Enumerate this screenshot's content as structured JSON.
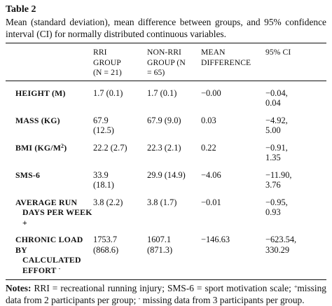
{
  "table_label": "Table 2",
  "caption": "Mean (standard deviation), mean difference between groups, and 95% confidence interval (CI) for normally distributed continuous variables.",
  "header": {
    "rri_line1": "RRI",
    "rri_line2": "GROUP",
    "rri_line3": "(N = 21)",
    "non_line1": "NON-RRI",
    "non_line2": "GROUP (N",
    "non_line3": "= 65)",
    "md_line1": "MEAN",
    "md_line2": "DIFFERENCE",
    "ci": "95% CI"
  },
  "rows": [
    {
      "label": "HEIGHT (M)",
      "rri1": "1.7 (0.1)",
      "rri2": "",
      "non1": "1.7 (0.1)",
      "non2": "",
      "md": "−0.00",
      "ci1": "−0.04,",
      "ci2": "0.04"
    },
    {
      "label": "MASS (KG)",
      "rri1": "67.9",
      "rri2": "(12.5)",
      "non1": "67.9 (9.0)",
      "non2": "",
      "md": "0.03",
      "ci1": "−4.92,",
      "ci2": "5.00"
    },
    {
      "label": "BMI (KG/M",
      "label_sup": "2",
      "label_end": ")",
      "rri1": "22.2 (2.7)",
      "rri2": "",
      "non1": "22.3 (2.1)",
      "non2": "",
      "md": "0.22",
      "ci1": "−0.91,",
      "ci2": "1.35"
    },
    {
      "label": "SMS-6",
      "rri1": "33.9",
      "rri2": "(18.1)",
      "non1": "29.9 (14.9)",
      "non2": "",
      "md": "−4.06",
      "ci1": "−11.90,",
      "ci2": "3.76"
    },
    {
      "label": "AVERAGE RUN",
      "label_line2": "DAYS PER WEEK",
      "label_line3": "+",
      "rri1": "3.8 (2.2)",
      "rri2": "",
      "non1": "3.8 (1.7)",
      "non2": "",
      "md": "−0.01",
      "ci1": "−0.95,",
      "ci2": "0.93"
    },
    {
      "label": "CHRONIC LOAD BY",
      "label_line2": "CALCULATED",
      "label_line3": "EFFORT",
      "label_mark": "-",
      "rri1": "1753.7",
      "rri2": "(868.6)",
      "non1": "1607.1",
      "non2": "(871.3)",
      "md": "−146.63",
      "ci1": "−623.54,",
      "ci2": "330.29"
    }
  ],
  "notes": {
    "lead": "Notes:",
    "text1": " RRI = recreational running injury; SMS-6 = sport motivation scale; ",
    "mark_plus": "+",
    "text2": "missing data from 2 participants per group; ",
    "mark_minus": "-",
    "text3": " missing data from 3 participants per group."
  }
}
